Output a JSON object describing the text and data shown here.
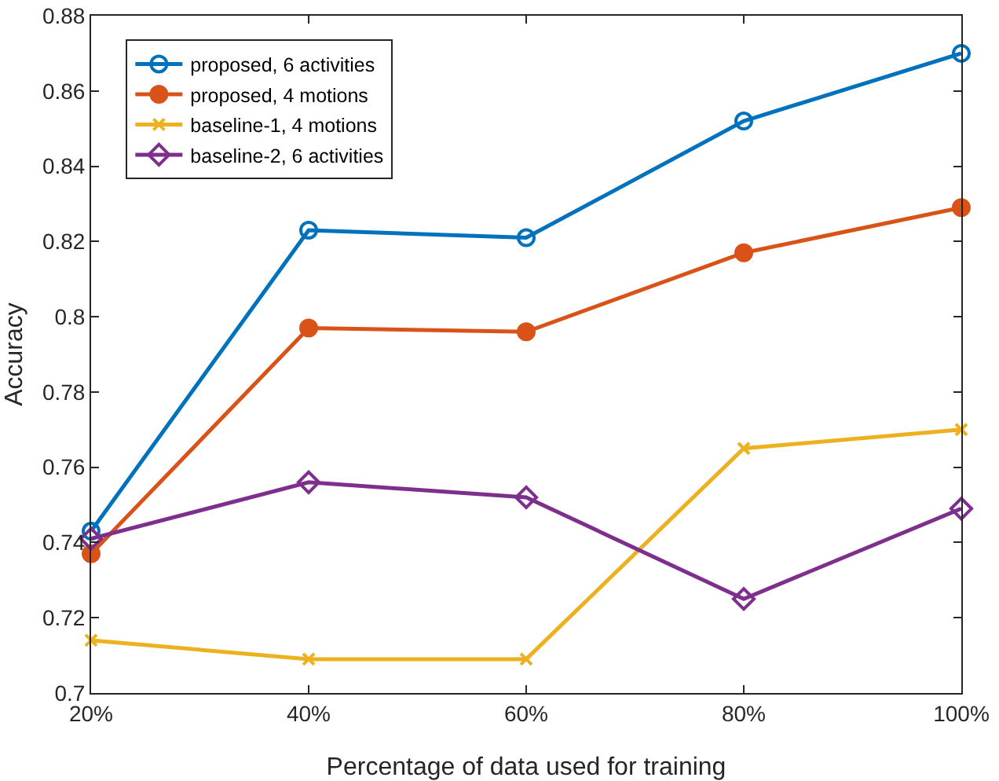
{
  "chart_data": {
    "type": "line",
    "xlabel": "Percentage of data used for training",
    "ylabel": "Accuracy",
    "x": [
      20,
      40,
      60,
      80,
      100
    ],
    "xlim": [
      20,
      100
    ],
    "xticks": [
      {
        "value": 20,
        "label": "20%"
      },
      {
        "value": 40,
        "label": "40%"
      },
      {
        "value": 60,
        "label": "60%"
      },
      {
        "value": 80,
        "label": "80%"
      },
      {
        "value": 100,
        "label": "100%"
      }
    ],
    "ylim": [
      0.7,
      0.88
    ],
    "yticks": [
      0.7,
      0.72,
      0.74,
      0.76,
      0.78,
      0.8,
      0.82,
      0.84,
      0.86,
      0.88
    ],
    "grid": false,
    "legend": "top left",
    "line_style": "solid",
    "series": [
      {
        "name": "proposed, 6 activities",
        "color": "#0072bd",
        "marker": "circle",
        "values": [
          0.743,
          0.823,
          0.821,
          0.852,
          0.87
        ]
      },
      {
        "name": "proposed, 4 motions",
        "color": "#d95319",
        "marker": "circle",
        "values": [
          0.737,
          0.797,
          0.796,
          0.817,
          0.829
        ]
      },
      {
        "name": "baseline-1, 4 motions",
        "color": "#edb120",
        "marker": "cross",
        "values": [
          0.714,
          0.709,
          0.709,
          0.765,
          0.77
        ]
      },
      {
        "name": "baseline-2, 6 activities",
        "color": "#7e2f8e",
        "marker": "diamond",
        "values": [
          0.741,
          0.756,
          0.752,
          0.725,
          0.749
        ]
      }
    ]
  }
}
